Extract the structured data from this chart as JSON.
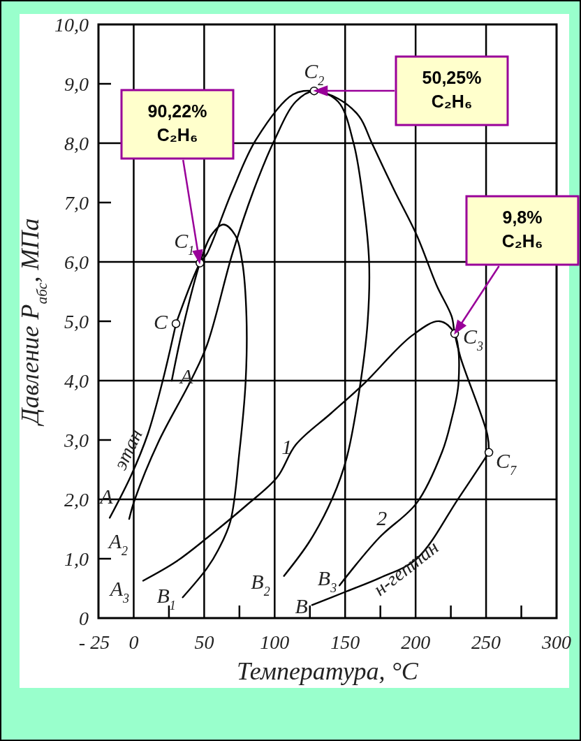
{
  "chart_data": {
    "type": "line",
    "xlabel": "Температура, °C",
    "ylabel": "Давление P$_{абс}$, МПа",
    "xlim": [
      -25,
      300
    ],
    "xticks": [
      {
        "value": -25,
        "label": "- 25"
      },
      0,
      50,
      100,
      150,
      200,
      250,
      300
    ],
    "ylim": [
      0,
      10
    ],
    "yticks": [
      0,
      {
        "value": 1,
        "label": "1,0"
      },
      {
        "value": 2,
        "label": "2,0"
      },
      {
        "value": 3,
        "label": "3,0"
      },
      {
        "value": 4,
        "label": "4,0"
      },
      {
        "value": 5,
        "label": "5,0"
      },
      {
        "value": 6,
        "label": "6,0"
      },
      {
        "value": 7,
        "label": "7,0"
      },
      {
        "value": 8,
        "label": "8,0"
      },
      {
        "value": 9,
        "label": "9,0"
      },
      {
        "value": 10,
        "label": "10,0"
      }
    ],
    "grid": true,
    "marker": "none",
    "line_style": "solid",
    "series": [
      {
        "color": "#000000",
        "x": [
          -17,
          -1.7,
          10,
          20.6,
          30
        ],
        "values": [
          1.69,
          2.41,
          3.1,
          4.0,
          4.96
        ]
      },
      {
        "color": "#000000",
        "x": [
          27,
          35,
          47,
          55,
          63.7,
          72,
          77,
          80,
          79.4,
          75,
          68.6,
          60,
          52,
          34.8
        ],
        "values": [
          4.0,
          4.9,
          5.98,
          6.45,
          6.63,
          6.45,
          6.0,
          5.08,
          3.98,
          2.8,
          1.63,
          1.15,
          0.84,
          0.35
        ]
      },
      {
        "color": "#000000",
        "x": [
          -3.2,
          0.8,
          17.4,
          40.5,
          52,
          70,
          85,
          100,
          115,
          128,
          145,
          156,
          163,
          167,
          166,
          161,
          151,
          141,
          125,
          106.6
        ],
        "values": [
          1.67,
          2.0,
          2.96,
          4.0,
          4.6,
          6.14,
          7.2,
          8.06,
          8.7,
          8.88,
          8.7,
          8.0,
          7.0,
          6.0,
          5.0,
          3.98,
          2.69,
          2.02,
          1.3,
          0.71
        ]
      },
      {
        "color": "#000000",
        "x": [
          6.7,
          30,
          52,
          80,
          101.7,
          115,
          140,
          163,
          197.5,
          217,
          227.7,
          230.5,
          225,
          218.8,
          200.8,
          174,
          146
        ],
        "values": [
          0.63,
          0.95,
          1.35,
          1.9,
          2.37,
          2.92,
          3.45,
          3.94,
          4.76,
          5.0,
          4.79,
          3.98,
          3.3,
          2.8,
          1.94,
          1.35,
          0.55
        ]
      },
      {
        "color": "#000000",
        "x": [
          126.5,
          151,
          175,
          200.8,
          230.5,
          252
        ],
        "values": [
          0.22,
          0.45,
          0.68,
          1.0,
          2.02,
          2.79
        ]
      },
      {
        "color": "#000000",
        "x": [
          30,
          47,
          52,
          70,
          86.8,
          113,
          128,
          145,
          160,
          169,
          185,
          200.8,
          215,
          225.6,
          227.7,
          232,
          251,
          252
        ],
        "values": [
          4.96,
          5.98,
          6.14,
          7.2,
          8.06,
          8.82,
          8.88,
          8.75,
          8.45,
          8.0,
          7.2,
          6.45,
          5.6,
          5.08,
          4.79,
          4.38,
          3.08,
          2.79
        ]
      },
      {
        "type": "scatter",
        "marker": "circle",
        "color": "#000000",
        "x": [
          30,
          47,
          128,
          227.7,
          252
        ],
        "values": [
          4.96,
          5.98,
          8.88,
          4.79,
          2.79
        ]
      }
    ],
    "annotations": [
      {
        "text": "C",
        "x": 30,
        "y": 4.96
      },
      {
        "text": "C$_{1}$",
        "x": 47,
        "y": 5.98
      },
      {
        "text": "C$_{2}$",
        "x": 128,
        "y": 8.88
      },
      {
        "text": "C$_{3}$",
        "x": 227.7,
        "y": 4.79
      },
      {
        "text": "C$_{7}$",
        "x": 252,
        "y": 2.79
      },
      {
        "text": "A",
        "x": -17,
        "y": 1.69
      },
      {
        "text": "A",
        "x": 27,
        "y": 4.0
      },
      {
        "text": "A$_{2}$",
        "x": -3.2,
        "y": 1.67
      },
      {
        "text": "A$_{3}$",
        "x": 6.7,
        "y": 0.63
      },
      {
        "text": "B$_{1}$",
        "x": 34.8,
        "y": 0.35
      },
      {
        "text": "B$_{2}$",
        "x": 106.6,
        "y": 0.71
      },
      {
        "text": "B$_{3}$",
        "x": 146,
        "y": 0.55
      },
      {
        "text": "B",
        "x": 126.5,
        "y": 0.22
      },
      {
        "text": "1",
        "x": 101.7,
        "y": 2.37
      },
      {
        "text": "2",
        "x": 174,
        "y": 1.35
      },
      {
        "text": "этан",
        "x": 5,
        "y": 2.75
      },
      {
        "text": "н-гептан",
        "x": 190,
        "y": 0.85
      },
      "90,22%\nC₂H₆",
      "50,25%\nC₂H₆",
      "9,8%\nC₂H₆"
    ]
  }
}
